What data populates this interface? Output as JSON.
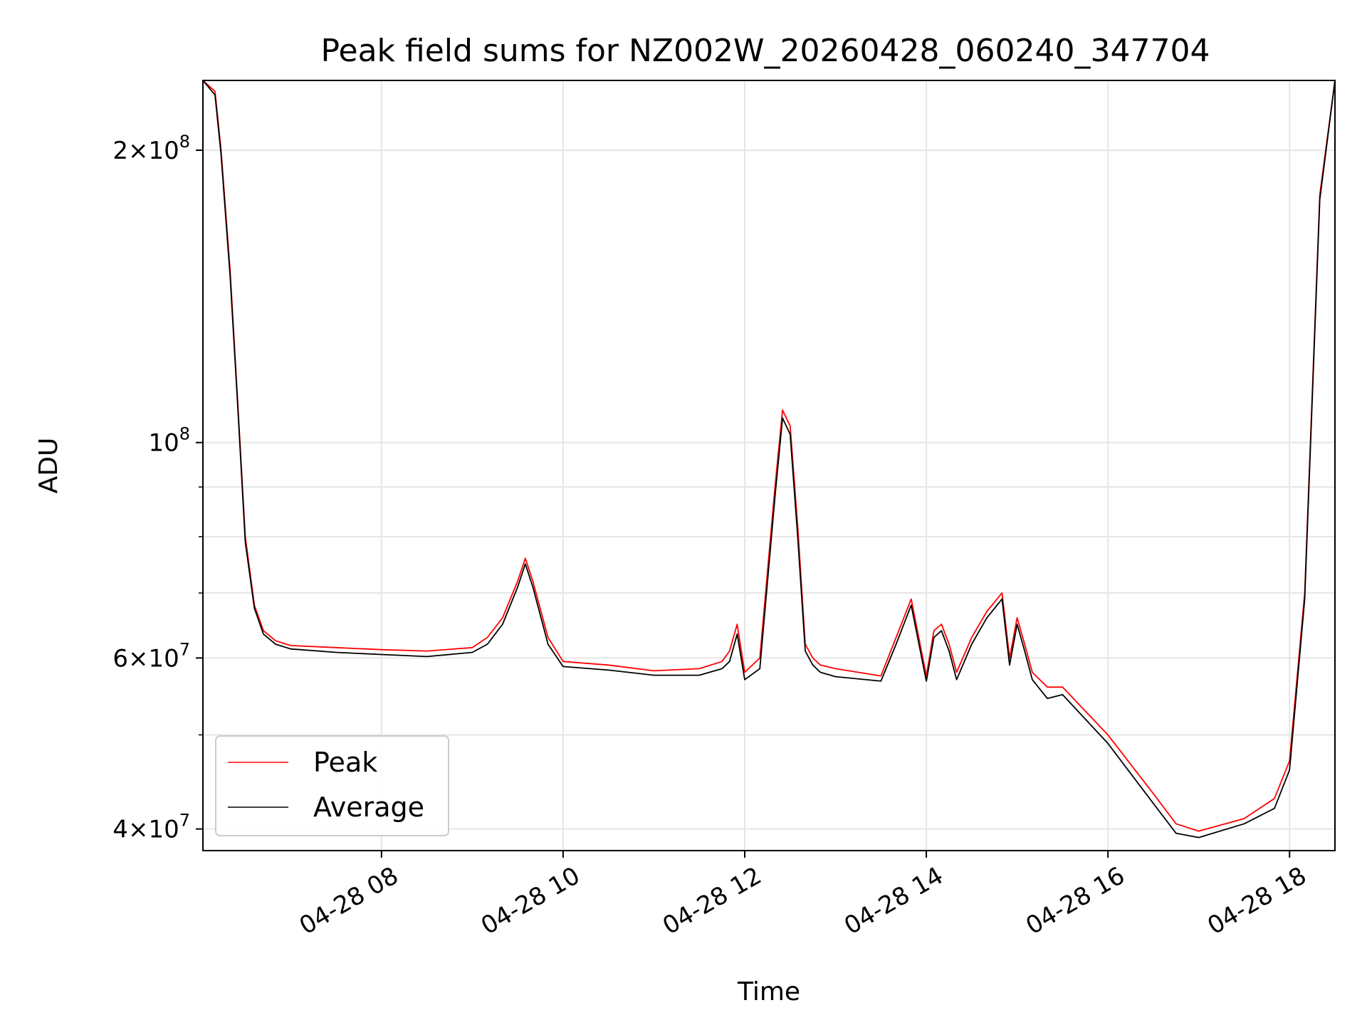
{
  "chart_data": {
    "type": "line",
    "title": "Peak field sums for NZ002W_20260428_060240_347704",
    "xlabel": "Time",
    "ylabel": "ADU",
    "x_unit": "date-hour",
    "xlim": [
      "04-28 06:02",
      "04-28 18:30"
    ],
    "ylim": [
      38000000,
      236000000
    ],
    "y_scale": "log",
    "grid": true,
    "legend_position": "lower-left",
    "x_ticks": [
      {
        "value": "04-28 08:00",
        "label": "04-28 08"
      },
      {
        "value": "04-28 10:00",
        "label": "04-28 10"
      },
      {
        "value": "04-28 12:00",
        "label": "04-28 12"
      },
      {
        "value": "04-28 14:00",
        "label": "04-28 14"
      },
      {
        "value": "04-28 16:00",
        "label": "04-28 16"
      },
      {
        "value": "04-28 18:00",
        "label": "04-28 18"
      }
    ],
    "y_major_ticks": [
      {
        "value": 40000000,
        "mantissa": "4",
        "exponent": "7"
      },
      {
        "value": 60000000,
        "mantissa": "6",
        "exponent": "7"
      },
      {
        "value": 100000000,
        "mantissa": "",
        "exponent": "8"
      },
      {
        "value": 200000000,
        "mantissa": "2",
        "exponent": "8"
      }
    ],
    "y_minor_grid": [
      50000000,
      70000000,
      80000000,
      90000000
    ],
    "series": [
      {
        "name": "Peak",
        "color": "#ff0000",
        "x": [
          "04-28 06:02",
          "04-28 06:10",
          "04-28 06:14",
          "04-28 06:20",
          "04-28 06:25",
          "04-28 06:30",
          "04-28 06:36",
          "04-28 06:42",
          "04-28 06:50",
          "04-28 07:00",
          "04-28 07:30",
          "04-28 08:00",
          "04-28 08:30",
          "04-28 09:00",
          "04-28 09:10",
          "04-28 09:20",
          "04-28 09:30",
          "04-28 09:35",
          "04-28 09:40",
          "04-28 09:50",
          "04-28 10:00",
          "04-28 10:30",
          "04-28 11:00",
          "04-28 11:30",
          "04-28 11:45",
          "04-28 11:50",
          "04-28 11:55",
          "04-28 12:00",
          "04-28 12:10",
          "04-28 12:20",
          "04-28 12:25",
          "04-28 12:30",
          "04-28 12:35",
          "04-28 12:40",
          "04-28 12:45",
          "04-28 12:50",
          "04-28 13:00",
          "04-28 13:30",
          "04-28 13:40",
          "04-28 13:50",
          "04-28 14:00",
          "04-28 14:05",
          "04-28 14:10",
          "04-28 14:15",
          "04-28 14:20",
          "04-28 14:30",
          "04-28 14:40",
          "04-28 14:50",
          "04-28 14:55",
          "04-28 15:00",
          "04-28 15:05",
          "04-28 15:10",
          "04-28 15:20",
          "04-28 15:30",
          "04-28 16:00",
          "04-28 16:30",
          "04-28 16:45",
          "04-28 17:00",
          "04-28 17:30",
          "04-28 17:50",
          "04-28 18:00",
          "04-28 18:10",
          "04-28 18:20",
          "04-28 18:30"
        ],
        "values": [
          236000000,
          230000000,
          200000000,
          150000000,
          110000000,
          80000000,
          68000000,
          64000000,
          62500000,
          61800000,
          61500000,
          61200000,
          61000000,
          61500000,
          63000000,
          66000000,
          72000000,
          76000000,
          72000000,
          63000000,
          59500000,
          59000000,
          58200000,
          58500000,
          59500000,
          61000000,
          65000000,
          58000000,
          60000000,
          90000000,
          108000000,
          104000000,
          82000000,
          62000000,
          60000000,
          59000000,
          58500000,
          57500000,
          63000000,
          69000000,
          57500000,
          64000000,
          65000000,
          62000000,
          58000000,
          63000000,
          67000000,
          70000000,
          60000000,
          66000000,
          62000000,
          58000000,
          56000000,
          56000000,
          50000000,
          43500000,
          40500000,
          39800000,
          41000000,
          43000000,
          47000000,
          70000000,
          180000000,
          236000000
        ]
      },
      {
        "name": "Average",
        "color": "#000000",
        "x": [
          "04-28 06:02",
          "04-28 06:10",
          "04-28 06:14",
          "04-28 06:20",
          "04-28 06:25",
          "04-28 06:30",
          "04-28 06:36",
          "04-28 06:42",
          "04-28 06:50",
          "04-28 07:00",
          "04-28 07:30",
          "04-28 08:00",
          "04-28 08:30",
          "04-28 09:00",
          "04-28 09:10",
          "04-28 09:20",
          "04-28 09:30",
          "04-28 09:35",
          "04-28 09:40",
          "04-28 09:50",
          "04-28 10:00",
          "04-28 10:30",
          "04-28 11:00",
          "04-28 11:30",
          "04-28 11:45",
          "04-28 11:50",
          "04-28 11:55",
          "04-28 12:00",
          "04-28 12:10",
          "04-28 12:20",
          "04-28 12:25",
          "04-28 12:30",
          "04-28 12:35",
          "04-28 12:40",
          "04-28 12:45",
          "04-28 12:50",
          "04-28 13:00",
          "04-28 13:30",
          "04-28 13:40",
          "04-28 13:50",
          "04-28 14:00",
          "04-28 14:05",
          "04-28 14:10",
          "04-28 14:15",
          "04-28 14:20",
          "04-28 14:30",
          "04-28 14:40",
          "04-28 14:50",
          "04-28 14:55",
          "04-28 15:00",
          "04-28 15:05",
          "04-28 15:10",
          "04-28 15:20",
          "04-28 15:30",
          "04-28 16:00",
          "04-28 16:30",
          "04-28 16:45",
          "04-28 17:00",
          "04-28 17:30",
          "04-28 17:50",
          "04-28 18:00",
          "04-28 18:10",
          "04-28 18:20",
          "04-28 18:30"
        ],
        "values": [
          236000000,
          228000000,
          198000000,
          148000000,
          109000000,
          79000000,
          67500000,
          63500000,
          62000000,
          61300000,
          60800000,
          60500000,
          60200000,
          60800000,
          62000000,
          65000000,
          71000000,
          75000000,
          71000000,
          62000000,
          58800000,
          58300000,
          57600000,
          57600000,
          58500000,
          59500000,
          63500000,
          57000000,
          58500000,
          88000000,
          106000000,
          102000000,
          80000000,
          61000000,
          59000000,
          58000000,
          57400000,
          56800000,
          62000000,
          68000000,
          56800000,
          63000000,
          64000000,
          61000000,
          57000000,
          62000000,
          66000000,
          69000000,
          59000000,
          65000000,
          61000000,
          57000000,
          54500000,
          55000000,
          49000000,
          42500000,
          39600000,
          39200000,
          40500000,
          42000000,
          46000000,
          69000000,
          178000000,
          236000000
        ]
      }
    ]
  }
}
